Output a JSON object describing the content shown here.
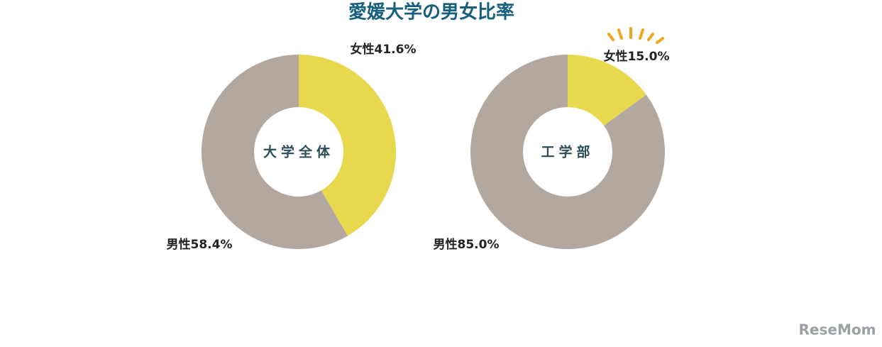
{
  "title": "愛媛大学の男女比率",
  "chart_data": [
    {
      "type": "pie",
      "center_label": "大学全体",
      "categories": [
        "女性",
        "男性"
      ],
      "values": [
        41.6,
        58.4
      ],
      "value_labels": [
        "41.6%",
        "58.4%"
      ],
      "colors": [
        "#e8d84e",
        "#b3a89f"
      ]
    },
    {
      "type": "pie",
      "center_label": "工学部",
      "categories": [
        "女性",
        "男性"
      ],
      "values": [
        15.0,
        85.0
      ],
      "value_labels": [
        "15.0%",
        "85.0%"
      ],
      "colors": [
        "#e8d84e",
        "#b3a89f"
      ]
    }
  ],
  "watermark": "ReseMom"
}
